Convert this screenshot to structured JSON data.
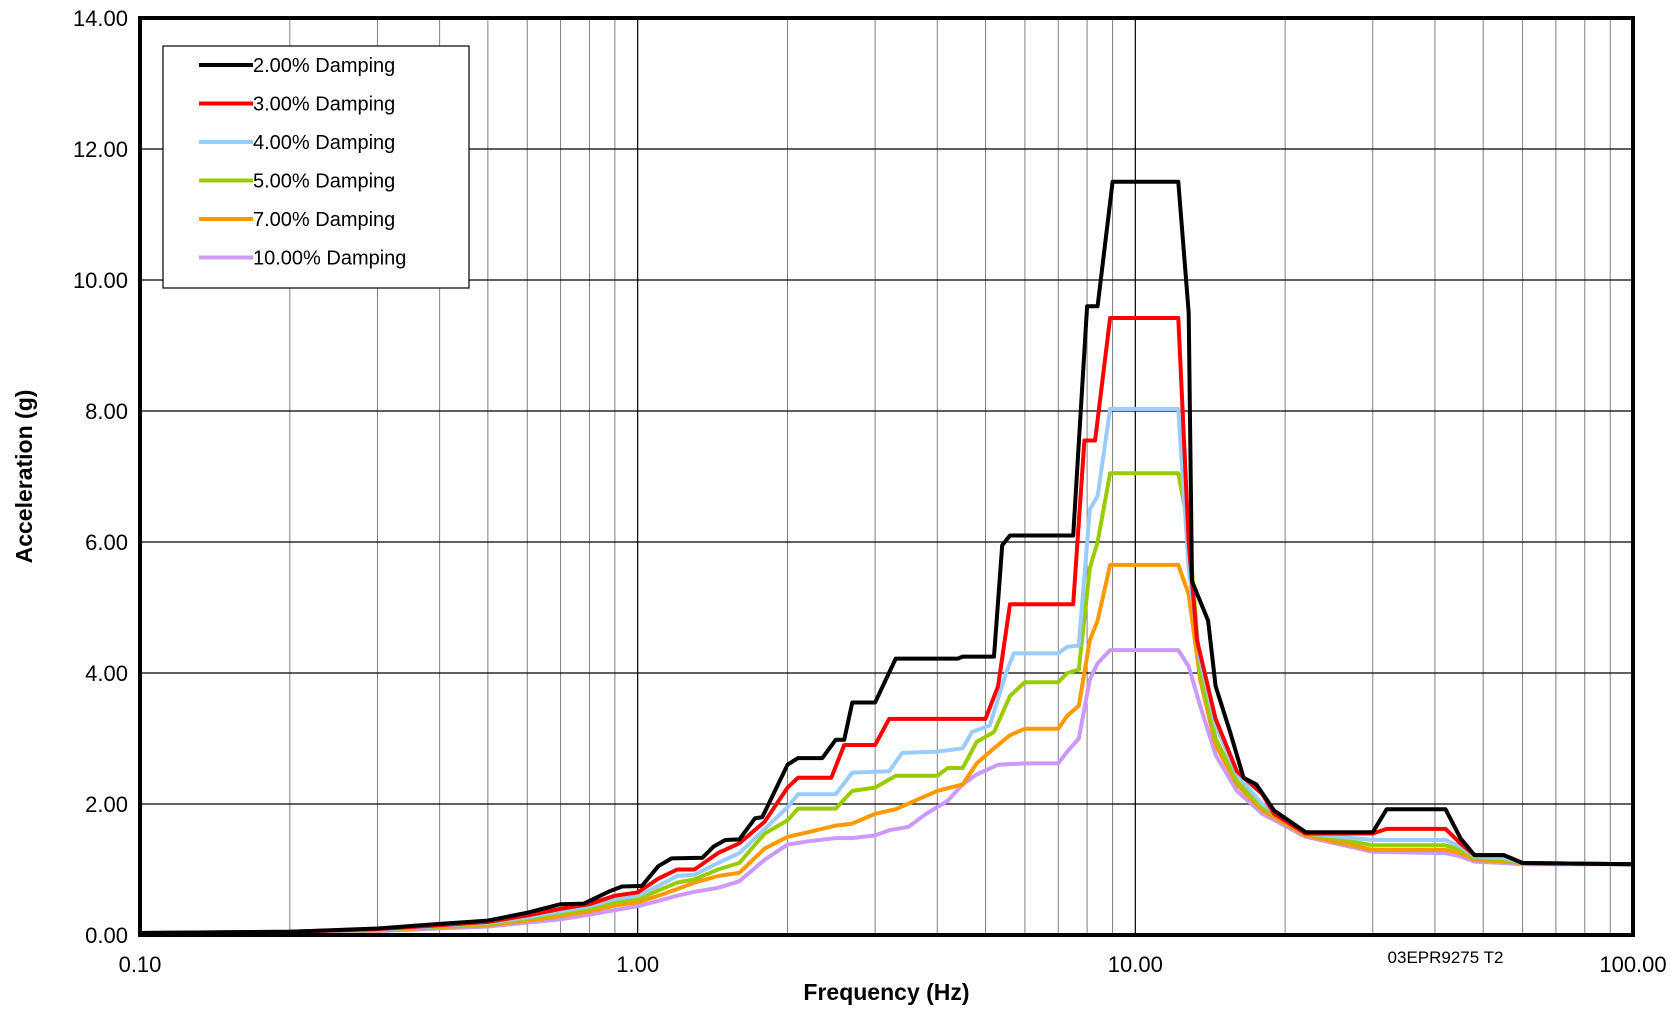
{
  "chart_data": {
    "type": "line",
    "xscale": "log",
    "xlim": [
      0.1,
      100
    ],
    "ylim": [
      0,
      14
    ],
    "grid": true,
    "xlabel": "Frequency (Hz)",
    "ylabel": "Acceleration (g)",
    "xtick_labels": [
      "0.10",
      "1.00",
      "10.00",
      "100.00"
    ],
    "ytick_labels": [
      "0.00",
      "2.00",
      "4.00",
      "6.00",
      "8.00",
      "10.00",
      "12.00",
      "14.00"
    ],
    "legend_position": "top-left",
    "annotation": "03EPR9275 T2",
    "series": [
      {
        "name": "2.00% Damping",
        "color": "#000000",
        "points": [
          [
            0.1,
            0.03
          ],
          [
            0.2,
            0.05
          ],
          [
            0.3,
            0.1
          ],
          [
            0.4,
            0.17
          ],
          [
            0.5,
            0.22
          ],
          [
            0.6,
            0.34
          ],
          [
            0.7,
            0.47
          ],
          [
            0.78,
            0.48
          ],
          [
            0.88,
            0.67
          ],
          [
            0.93,
            0.74
          ],
          [
            1.02,
            0.75
          ],
          [
            1.1,
            1.05
          ],
          [
            1.17,
            1.17
          ],
          [
            1.35,
            1.18
          ],
          [
            1.42,
            1.35
          ],
          [
            1.5,
            1.45
          ],
          [
            1.6,
            1.46
          ],
          [
            1.72,
            1.78
          ],
          [
            1.78,
            1.8
          ],
          [
            2.0,
            2.6
          ],
          [
            2.1,
            2.7
          ],
          [
            2.35,
            2.7
          ],
          [
            2.5,
            2.98
          ],
          [
            2.6,
            2.98
          ],
          [
            2.7,
            3.55
          ],
          [
            3.0,
            3.55
          ],
          [
            3.3,
            4.22
          ],
          [
            4.4,
            4.22
          ],
          [
            4.5,
            4.25
          ],
          [
            5.2,
            4.25
          ],
          [
            5.4,
            5.95
          ],
          [
            5.6,
            6.1
          ],
          [
            7.5,
            6.1
          ],
          [
            8.0,
            9.6
          ],
          [
            8.4,
            9.6
          ],
          [
            9.0,
            11.5
          ],
          [
            12.2,
            11.5
          ],
          [
            12.8,
            9.5
          ],
          [
            13.0,
            5.4
          ],
          [
            14.0,
            4.8
          ],
          [
            14.5,
            3.8
          ],
          [
            15.5,
            3.1
          ],
          [
            16.5,
            2.4
          ],
          [
            17.5,
            2.3
          ],
          [
            19.0,
            1.9
          ],
          [
            22.0,
            1.57
          ],
          [
            30.0,
            1.57
          ],
          [
            32.0,
            1.92
          ],
          [
            42.0,
            1.92
          ],
          [
            45.0,
            1.48
          ],
          [
            48.0,
            1.22
          ],
          [
            55.0,
            1.22
          ],
          [
            60.0,
            1.1
          ],
          [
            100.0,
            1.08
          ]
        ]
      },
      {
        "name": "3.00% Damping",
        "color": "#ff0000",
        "points": [
          [
            0.1,
            0.03
          ],
          [
            0.2,
            0.05
          ],
          [
            0.3,
            0.09
          ],
          [
            0.4,
            0.15
          ],
          [
            0.5,
            0.2
          ],
          [
            0.6,
            0.3
          ],
          [
            0.7,
            0.4
          ],
          [
            0.8,
            0.47
          ],
          [
            0.9,
            0.6
          ],
          [
            1.0,
            0.65
          ],
          [
            1.1,
            0.86
          ],
          [
            1.2,
            1.0
          ],
          [
            1.3,
            1.0
          ],
          [
            1.45,
            1.25
          ],
          [
            1.6,
            1.4
          ],
          [
            1.8,
            1.73
          ],
          [
            2.0,
            2.25
          ],
          [
            2.1,
            2.4
          ],
          [
            2.45,
            2.4
          ],
          [
            2.6,
            2.9
          ],
          [
            3.0,
            2.9
          ],
          [
            3.2,
            3.3
          ],
          [
            5.0,
            3.3
          ],
          [
            5.3,
            3.8
          ],
          [
            5.6,
            5.05
          ],
          [
            7.5,
            5.05
          ],
          [
            7.9,
            7.55
          ],
          [
            8.3,
            7.55
          ],
          [
            8.9,
            9.42
          ],
          [
            12.2,
            9.42
          ],
          [
            12.8,
            6.0
          ],
          [
            13.3,
            4.5
          ],
          [
            14.5,
            3.3
          ],
          [
            16.0,
            2.5
          ],
          [
            18.0,
            2.15
          ],
          [
            19.0,
            1.85
          ],
          [
            22.0,
            1.55
          ],
          [
            30.0,
            1.55
          ],
          [
            32.0,
            1.62
          ],
          [
            42.0,
            1.62
          ],
          [
            45.0,
            1.4
          ],
          [
            48.0,
            1.22
          ],
          [
            55.0,
            1.22
          ],
          [
            60.0,
            1.1
          ],
          [
            100.0,
            1.08
          ]
        ]
      },
      {
        "name": "4.00% Damping",
        "color": "#99ccff",
        "points": [
          [
            0.1,
            0.03
          ],
          [
            0.2,
            0.04
          ],
          [
            0.3,
            0.08
          ],
          [
            0.4,
            0.14
          ],
          [
            0.5,
            0.19
          ],
          [
            0.6,
            0.27
          ],
          [
            0.7,
            0.36
          ],
          [
            0.8,
            0.44
          ],
          [
            0.9,
            0.55
          ],
          [
            1.0,
            0.6
          ],
          [
            1.1,
            0.75
          ],
          [
            1.2,
            0.9
          ],
          [
            1.3,
            0.92
          ],
          [
            1.45,
            1.1
          ],
          [
            1.6,
            1.25
          ],
          [
            1.8,
            1.62
          ],
          [
            2.0,
            1.95
          ],
          [
            2.1,
            2.15
          ],
          [
            2.5,
            2.15
          ],
          [
            2.7,
            2.48
          ],
          [
            3.2,
            2.5
          ],
          [
            3.4,
            2.78
          ],
          [
            4.0,
            2.8
          ],
          [
            4.5,
            2.85
          ],
          [
            4.7,
            3.1
          ],
          [
            5.1,
            3.2
          ],
          [
            5.5,
            4.0
          ],
          [
            5.7,
            4.3
          ],
          [
            7.0,
            4.3
          ],
          [
            7.3,
            4.4
          ],
          [
            7.7,
            4.42
          ],
          [
            8.1,
            6.5
          ],
          [
            8.4,
            6.7
          ],
          [
            8.9,
            8.03
          ],
          [
            12.2,
            8.03
          ],
          [
            12.8,
            5.6
          ],
          [
            13.5,
            4.2
          ],
          [
            14.5,
            3.2
          ],
          [
            16.0,
            2.45
          ],
          [
            18.0,
            2.0
          ],
          [
            22.0,
            1.55
          ],
          [
            30.0,
            1.45
          ],
          [
            42.0,
            1.45
          ],
          [
            45.0,
            1.35
          ],
          [
            48.0,
            1.2
          ],
          [
            55.0,
            1.18
          ],
          [
            60.0,
            1.1
          ],
          [
            100.0,
            1.08
          ]
        ]
      },
      {
        "name": "5.00% Damping",
        "color": "#99cc00",
        "points": [
          [
            0.1,
            0.03
          ],
          [
            0.2,
            0.04
          ],
          [
            0.3,
            0.08
          ],
          [
            0.4,
            0.13
          ],
          [
            0.5,
            0.17
          ],
          [
            0.6,
            0.25
          ],
          [
            0.7,
            0.33
          ],
          [
            0.8,
            0.4
          ],
          [
            0.9,
            0.5
          ],
          [
            1.0,
            0.55
          ],
          [
            1.1,
            0.68
          ],
          [
            1.2,
            0.8
          ],
          [
            1.3,
            0.85
          ],
          [
            1.45,
            1.0
          ],
          [
            1.6,
            1.1
          ],
          [
            1.8,
            1.55
          ],
          [
            2.0,
            1.75
          ],
          [
            2.1,
            1.93
          ],
          [
            2.5,
            1.93
          ],
          [
            2.7,
            2.2
          ],
          [
            3.0,
            2.25
          ],
          [
            3.3,
            2.43
          ],
          [
            4.0,
            2.43
          ],
          [
            4.2,
            2.55
          ],
          [
            4.5,
            2.55
          ],
          [
            4.8,
            2.95
          ],
          [
            5.2,
            3.1
          ],
          [
            5.6,
            3.65
          ],
          [
            6.0,
            3.86
          ],
          [
            7.0,
            3.86
          ],
          [
            7.3,
            4.0
          ],
          [
            7.7,
            4.05
          ],
          [
            8.1,
            5.6
          ],
          [
            8.4,
            6.0
          ],
          [
            8.9,
            7.05
          ],
          [
            12.2,
            7.05
          ],
          [
            12.8,
            6.2
          ],
          [
            13.5,
            4.0
          ],
          [
            14.5,
            3.0
          ],
          [
            16.0,
            2.35
          ],
          [
            18.0,
            1.95
          ],
          [
            22.0,
            1.55
          ],
          [
            30.0,
            1.37
          ],
          [
            42.0,
            1.37
          ],
          [
            45.0,
            1.3
          ],
          [
            48.0,
            1.18
          ],
          [
            55.0,
            1.15
          ],
          [
            60.0,
            1.1
          ],
          [
            100.0,
            1.08
          ]
        ]
      },
      {
        "name": "7.00% Damping",
        "color": "#ff9900",
        "points": [
          [
            0.1,
            0.03
          ],
          [
            0.2,
            0.04
          ],
          [
            0.3,
            0.07
          ],
          [
            0.4,
            0.12
          ],
          [
            0.5,
            0.15
          ],
          [
            0.6,
            0.22
          ],
          [
            0.7,
            0.29
          ],
          [
            0.8,
            0.36
          ],
          [
            0.9,
            0.45
          ],
          [
            1.0,
            0.5
          ],
          [
            1.1,
            0.6
          ],
          [
            1.2,
            0.7
          ],
          [
            1.3,
            0.8
          ],
          [
            1.45,
            0.9
          ],
          [
            1.6,
            0.95
          ],
          [
            1.8,
            1.32
          ],
          [
            2.0,
            1.5
          ],
          [
            2.2,
            1.57
          ],
          [
            2.5,
            1.67
          ],
          [
            2.7,
            1.7
          ],
          [
            3.0,
            1.85
          ],
          [
            3.3,
            1.92
          ],
          [
            4.0,
            2.2
          ],
          [
            4.5,
            2.3
          ],
          [
            4.8,
            2.62
          ],
          [
            5.2,
            2.85
          ],
          [
            5.6,
            3.05
          ],
          [
            6.0,
            3.15
          ],
          [
            7.0,
            3.15
          ],
          [
            7.3,
            3.35
          ],
          [
            7.7,
            3.5
          ],
          [
            8.1,
            4.5
          ],
          [
            8.4,
            4.8
          ],
          [
            8.9,
            5.65
          ],
          [
            12.2,
            5.65
          ],
          [
            12.8,
            5.2
          ],
          [
            13.5,
            3.9
          ],
          [
            14.5,
            2.9
          ],
          [
            16.0,
            2.3
          ],
          [
            18.0,
            1.9
          ],
          [
            22.0,
            1.52
          ],
          [
            30.0,
            1.3
          ],
          [
            42.0,
            1.3
          ],
          [
            45.0,
            1.25
          ],
          [
            48.0,
            1.15
          ],
          [
            55.0,
            1.12
          ],
          [
            60.0,
            1.1
          ],
          [
            100.0,
            1.08
          ]
        ]
      },
      {
        "name": "10.00% Damping",
        "color": "#cc99ff",
        "points": [
          [
            0.1,
            0.02
          ],
          [
            0.2,
            0.04
          ],
          [
            0.3,
            0.06
          ],
          [
            0.4,
            0.1
          ],
          [
            0.5,
            0.13
          ],
          [
            0.6,
            0.19
          ],
          [
            0.7,
            0.24
          ],
          [
            0.8,
            0.31
          ],
          [
            0.9,
            0.38
          ],
          [
            1.0,
            0.44
          ],
          [
            1.1,
            0.52
          ],
          [
            1.2,
            0.6
          ],
          [
            1.3,
            0.66
          ],
          [
            1.45,
            0.72
          ],
          [
            1.6,
            0.82
          ],
          [
            1.8,
            1.15
          ],
          [
            2.0,
            1.38
          ],
          [
            2.2,
            1.43
          ],
          [
            2.5,
            1.48
          ],
          [
            2.7,
            1.48
          ],
          [
            3.0,
            1.52
          ],
          [
            3.2,
            1.6
          ],
          [
            3.5,
            1.65
          ],
          [
            3.8,
            1.85
          ],
          [
            4.2,
            2.05
          ],
          [
            4.5,
            2.3
          ],
          [
            4.8,
            2.45
          ],
          [
            5.3,
            2.6
          ],
          [
            6.0,
            2.62
          ],
          [
            7.0,
            2.62
          ],
          [
            7.3,
            2.8
          ],
          [
            7.7,
            3.0
          ],
          [
            8.1,
            3.9
          ],
          [
            8.4,
            4.15
          ],
          [
            8.9,
            4.35
          ],
          [
            12.2,
            4.35
          ],
          [
            12.8,
            4.1
          ],
          [
            13.5,
            3.5
          ],
          [
            14.5,
            2.75
          ],
          [
            16.0,
            2.2
          ],
          [
            18.0,
            1.85
          ],
          [
            22.0,
            1.5
          ],
          [
            30.0,
            1.27
          ],
          [
            42.0,
            1.25
          ],
          [
            45.0,
            1.2
          ],
          [
            48.0,
            1.12
          ],
          [
            55.0,
            1.1
          ],
          [
            60.0,
            1.08
          ],
          [
            100.0,
            1.08
          ]
        ]
      }
    ]
  }
}
